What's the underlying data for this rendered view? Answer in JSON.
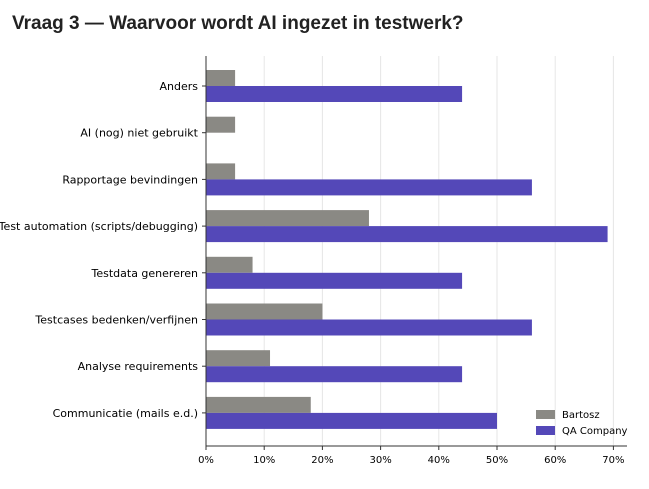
{
  "title": "Vraag 3 — Waarvoor wordt AI ingezet in testwerk?",
  "chart_data": {
    "type": "bar",
    "orientation": "horizontal",
    "categories": [
      "Anders",
      "AI (nog) niet gebruikt",
      "Rapportage bevindingen",
      "Test automation (scripts/debugging)",
      "Testdata genereren",
      "Testcases bedenken/verfijnen",
      "Analyse requirements",
      "Communicatie (mails e.d.)"
    ],
    "series": [
      {
        "name": "Bartosz",
        "color": "#8a8984",
        "values": [
          5,
          5,
          5,
          28,
          8,
          20,
          11,
          18
        ]
      },
      {
        "name": "QA Company",
        "color": "#5448b8",
        "values": [
          44,
          0,
          56,
          69,
          44,
          56,
          44,
          50
        ]
      }
    ],
    "xticks": [
      "0%",
      "10%",
      "20%",
      "30%",
      "40%",
      "50%",
      "60%",
      "70%"
    ],
    "xlim": [
      0,
      72
    ],
    "grid": "vertical",
    "legend_position": "bottom-right"
  }
}
